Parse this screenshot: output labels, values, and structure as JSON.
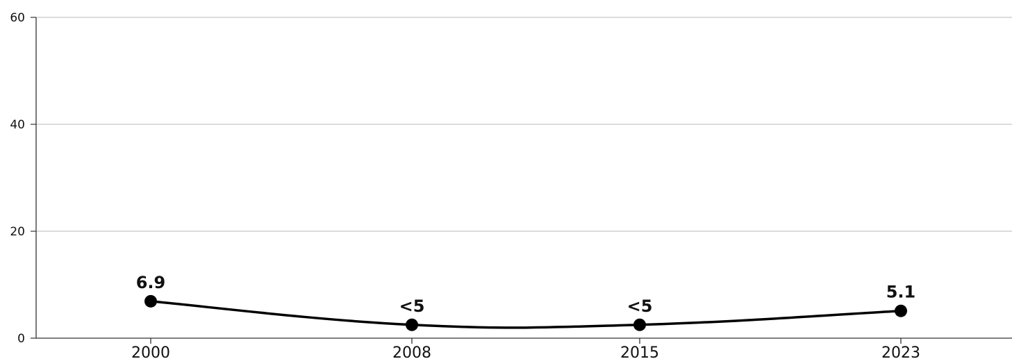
{
  "chart_data": {
    "type": "line",
    "categories": [
      "2000",
      "2008",
      "2015",
      "2023"
    ],
    "values": [
      6.9,
      2.5,
      2.5,
      5.1
    ],
    "data_labels": [
      "6.9",
      "<5",
      "<5",
      "5.1"
    ],
    "title": "",
    "xlabel": "",
    "ylabel": "",
    "ylim": [
      0,
      60
    ],
    "yticks": [
      0,
      20,
      40,
      60
    ],
    "grid": true,
    "line_color": "#000000",
    "grid_color": "#c8c8c8"
  }
}
